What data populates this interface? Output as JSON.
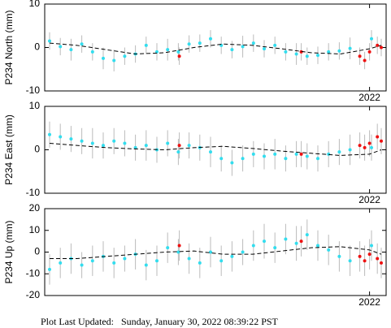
{
  "chart_data": [
    {
      "type": "scatter",
      "ylabel": "P234 North (mm)",
      "xlim": [
        2018.67,
        2022.17
      ],
      "ylim": [
        -10,
        10
      ],
      "yticks": [
        -10,
        0,
        10
      ],
      "xticks": [
        2022
      ],
      "error_color": "#bbbbbb",
      "series": [
        {
          "color": "#33ddee",
          "x": [
            2018.72,
            2018.83,
            2018.94,
            2019.05,
            2019.16,
            2019.27,
            2019.38,
            2019.49,
            2019.6,
            2019.71,
            2019.82,
            2019.93,
            2020.04,
            2020.15,
            2020.26,
            2020.37,
            2020.48,
            2020.59,
            2020.7,
            2020.81,
            2020.92,
            2021.03,
            2021.14,
            2021.25,
            2021.36,
            2021.47,
            2021.58,
            2021.69,
            2021.8,
            2022.02
          ],
          "values": [
            1.5,
            0.2,
            -0.5,
            0.8,
            -1,
            -2.5,
            -3,
            -2,
            -1.5,
            0.5,
            -1,
            -0.5,
            -1,
            0.8,
            1,
            2,
            0.5,
            -0.5,
            0.2,
            1,
            -0.3,
            0.5,
            -1,
            -1.5,
            -2,
            -1.8,
            -1,
            -0.8,
            -0.2,
            2
          ],
          "errors": [
            2,
            2,
            2.5,
            2,
            2,
            2.5,
            2.5,
            2,
            2,
            2,
            2,
            2.5,
            2,
            2,
            2,
            2,
            2,
            2,
            2.5,
            2,
            2,
            2,
            2,
            2.5,
            2,
            2,
            2,
            2,
            2.5,
            2
          ]
        },
        {
          "color": "#ee1111",
          "x": [
            2020.05,
            2021.3,
            2021.9,
            2021.95,
            2022.0,
            2022.08,
            2022.12
          ],
          "values": [
            -2,
            -1,
            -2,
            -3,
            -1,
            0.5,
            0
          ],
          "errors": [
            2,
            2,
            2,
            2,
            2,
            2,
            2
          ]
        },
        {
          "color": "#000000",
          "line": "dashed",
          "x": [
            2018.72,
            2019.0,
            2019.3,
            2019.6,
            2019.9,
            2020.2,
            2020.5,
            2020.8,
            2021.1,
            2021.4,
            2021.7,
            2022.0,
            2022.12
          ],
          "values": [
            1,
            0.5,
            -0.5,
            -1.5,
            -1.2,
            0,
            0.8,
            0.5,
            -0.3,
            -1.2,
            -1.5,
            -0.3,
            0.5
          ]
        }
      ]
    },
    {
      "type": "scatter",
      "ylabel": "P234 East (mm)",
      "xlim": [
        2018.67,
        2022.17
      ],
      "ylim": [
        -10,
        10
      ],
      "yticks": [
        -10,
        0,
        10
      ],
      "xticks": [
        2022
      ],
      "error_color": "#bbbbbb",
      "series": [
        {
          "color": "#33ddee",
          "x": [
            2018.72,
            2018.83,
            2018.94,
            2019.05,
            2019.16,
            2019.27,
            2019.38,
            2019.49,
            2019.6,
            2019.71,
            2019.82,
            2019.93,
            2020.04,
            2020.15,
            2020.26,
            2020.37,
            2020.48,
            2020.59,
            2020.7,
            2020.81,
            2020.92,
            2021.03,
            2021.14,
            2021.25,
            2021.36,
            2021.47,
            2021.58,
            2021.69,
            2021.8,
            2022.02
          ],
          "values": [
            3.5,
            3,
            2.5,
            2,
            1.5,
            1,
            2,
            1.5,
            0.5,
            1,
            0,
            1.5,
            -0.5,
            1,
            0.5,
            -0.5,
            -2,
            -3,
            -2,
            -1,
            -1.5,
            -1,
            -2,
            -1,
            -1.5,
            -2,
            -1,
            -0.5,
            0,
            0.5
          ],
          "errors": [
            3,
            3,
            3,
            3,
            3.5,
            3,
            3,
            3,
            3,
            3.5,
            3,
            3,
            3,
            3,
            3,
            3.5,
            3,
            3,
            3,
            3,
            3,
            3.5,
            3,
            3,
            3,
            3,
            3,
            3,
            3.5,
            3
          ]
        },
        {
          "color": "#ee1111",
          "x": [
            2020.05,
            2021.3,
            2021.9,
            2021.95,
            2022.0,
            2022.08,
            2022.12
          ],
          "values": [
            1,
            -1,
            1,
            0.5,
            1.5,
            3,
            2
          ],
          "errors": [
            3,
            3,
            3,
            3,
            3,
            3,
            3
          ]
        },
        {
          "color": "#000000",
          "line": "dashed",
          "x": [
            2018.72,
            2019.0,
            2019.3,
            2019.6,
            2019.9,
            2020.2,
            2020.5,
            2020.8,
            2021.1,
            2021.4,
            2021.7,
            2022.0,
            2022.12
          ],
          "values": [
            1.5,
            1,
            0.5,
            0.2,
            0,
            0.5,
            0.8,
            0.3,
            -0.3,
            -0.8,
            -1.3,
            -1,
            0
          ]
        }
      ]
    },
    {
      "type": "scatter",
      "ylabel": "P234 Up (mm)",
      "xlim": [
        2018.67,
        2022.17
      ],
      "ylim": [
        -20,
        20
      ],
      "yticks": [
        -20,
        -10,
        0,
        10,
        20
      ],
      "xticks": [
        2022
      ],
      "error_color": "#bbbbbb",
      "series": [
        {
          "color": "#33ddee",
          "x": [
            2018.72,
            2018.83,
            2018.94,
            2019.05,
            2019.16,
            2019.27,
            2019.38,
            2019.49,
            2019.6,
            2019.71,
            2019.82,
            2019.93,
            2020.04,
            2020.15,
            2020.26,
            2020.37,
            2020.48,
            2020.59,
            2020.7,
            2020.81,
            2020.92,
            2021.03,
            2021.14,
            2021.25,
            2021.36,
            2021.47,
            2021.58,
            2021.69,
            2021.8,
            2022.02
          ],
          "values": [
            -8,
            -5,
            -3,
            -6,
            -4,
            -2,
            -5,
            -3,
            -1,
            -6,
            -4,
            2,
            0,
            -3,
            -5,
            0,
            -4,
            -2,
            0,
            3,
            5,
            2,
            6,
            4,
            8,
            3,
            1,
            -2,
            -4,
            3
          ],
          "errors": [
            7,
            7,
            7,
            6,
            7,
            7,
            7,
            6,
            7,
            7,
            7,
            7,
            6,
            7,
            7,
            7,
            7,
            7,
            6,
            7,
            8,
            7,
            7,
            8,
            7,
            7,
            7,
            7,
            7,
            7
          ]
        },
        {
          "color": "#ee1111",
          "x": [
            2020.05,
            2021.3,
            2021.9,
            2021.95,
            2022.0,
            2022.08,
            2022.12
          ],
          "values": [
            3,
            5,
            -2,
            -4,
            -1,
            -3,
            -5
          ],
          "errors": [
            7,
            7,
            7,
            7,
            7,
            7,
            7
          ]
        },
        {
          "color": "#000000",
          "line": "dashed",
          "x": [
            2018.72,
            2019.0,
            2019.3,
            2019.6,
            2019.9,
            2020.2,
            2020.5,
            2020.8,
            2021.1,
            2021.4,
            2021.7,
            2022.0,
            2022.12
          ],
          "values": [
            -3,
            -3,
            -2,
            -1,
            0,
            0.5,
            -1,
            -1,
            0.5,
            2,
            2.5,
            1,
            -1
          ]
        }
      ]
    }
  ],
  "footer": "Plot Last Updated:   Sunday, January 30, 2022 08:39:22 PST"
}
